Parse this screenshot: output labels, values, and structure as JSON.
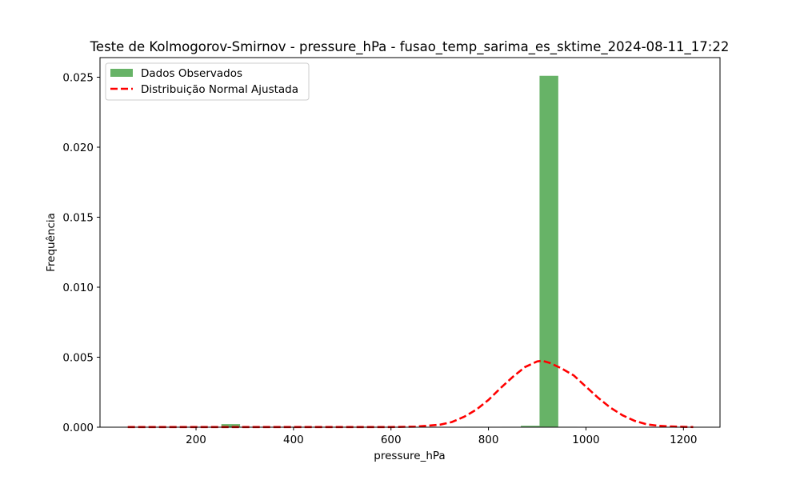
{
  "chart_data": {
    "type": "bar",
    "title": "Teste de Kolmogorov-Smirnov - pressure_hPa - fusao_temp_sarima_es_sktime_2024-08-11_17:22",
    "xlabel": "pressure_hPa",
    "ylabel": "Frequência",
    "xlim": [
      3,
      1275
    ],
    "ylim": [
      0,
      0.0264
    ],
    "x_ticks": [
      200,
      400,
      600,
      800,
      1000,
      1200
    ],
    "x_tick_labels": [
      "200",
      "400",
      "600",
      "800",
      "1000",
      "1200"
    ],
    "y_ticks": [
      0,
      0.005,
      0.01,
      0.015,
      0.02,
      0.025
    ],
    "y_tick_labels": [
      "0.000",
      "0.005",
      "0.010",
      "0.015",
      "0.020",
      "0.025"
    ],
    "grid": false,
    "legend_position": "top-left",
    "histogram": {
      "name": "Dados Observados",
      "color": "#4CA64C",
      "bin_edges": [
        60,
        98.4,
        136.8,
        175.2,
        213.6,
        252,
        290.4,
        328.8,
        367.2,
        405.6,
        444,
        482.4,
        520.8,
        559.2,
        597.6,
        636,
        674.4,
        712.8,
        751.2,
        789.6,
        828,
        866.4,
        904.8,
        943.2,
        981.6,
        1020
      ],
      "values": [
        0,
        0,
        0,
        0,
        0,
        0.00022,
        0,
        0,
        0,
        0,
        0,
        0,
        0,
        0,
        0,
        0,
        0,
        0,
        3e-05,
        0,
        3e-05,
        0.0001,
        0.0251,
        3e-05,
        0
      ]
    },
    "fitted_curve": {
      "name": "Distribuição Normal Ajustada",
      "color": "#FF0000",
      "x": [
        60,
        100,
        200,
        300,
        400,
        500,
        600,
        650,
        700,
        725,
        750,
        775,
        800,
        825,
        850,
        875,
        900,
        910,
        925,
        950,
        975,
        1000,
        1025,
        1050,
        1075,
        1100,
        1125,
        1150,
        1175,
        1200,
        1220
      ],
      "y": [
        1e-05,
        1e-05,
        1e-05,
        1e-05,
        1e-05,
        1e-05,
        1e-05,
        4e-05,
        0.00018,
        0.00037,
        0.00074,
        0.00125,
        0.00195,
        0.0028,
        0.0036,
        0.0043,
        0.0047,
        0.00475,
        0.0046,
        0.0042,
        0.0037,
        0.0029,
        0.0021,
        0.0014,
        0.00085,
        0.00045,
        0.0002,
        0.0001,
        5e-05,
        2e-05,
        1e-05
      ]
    }
  }
}
